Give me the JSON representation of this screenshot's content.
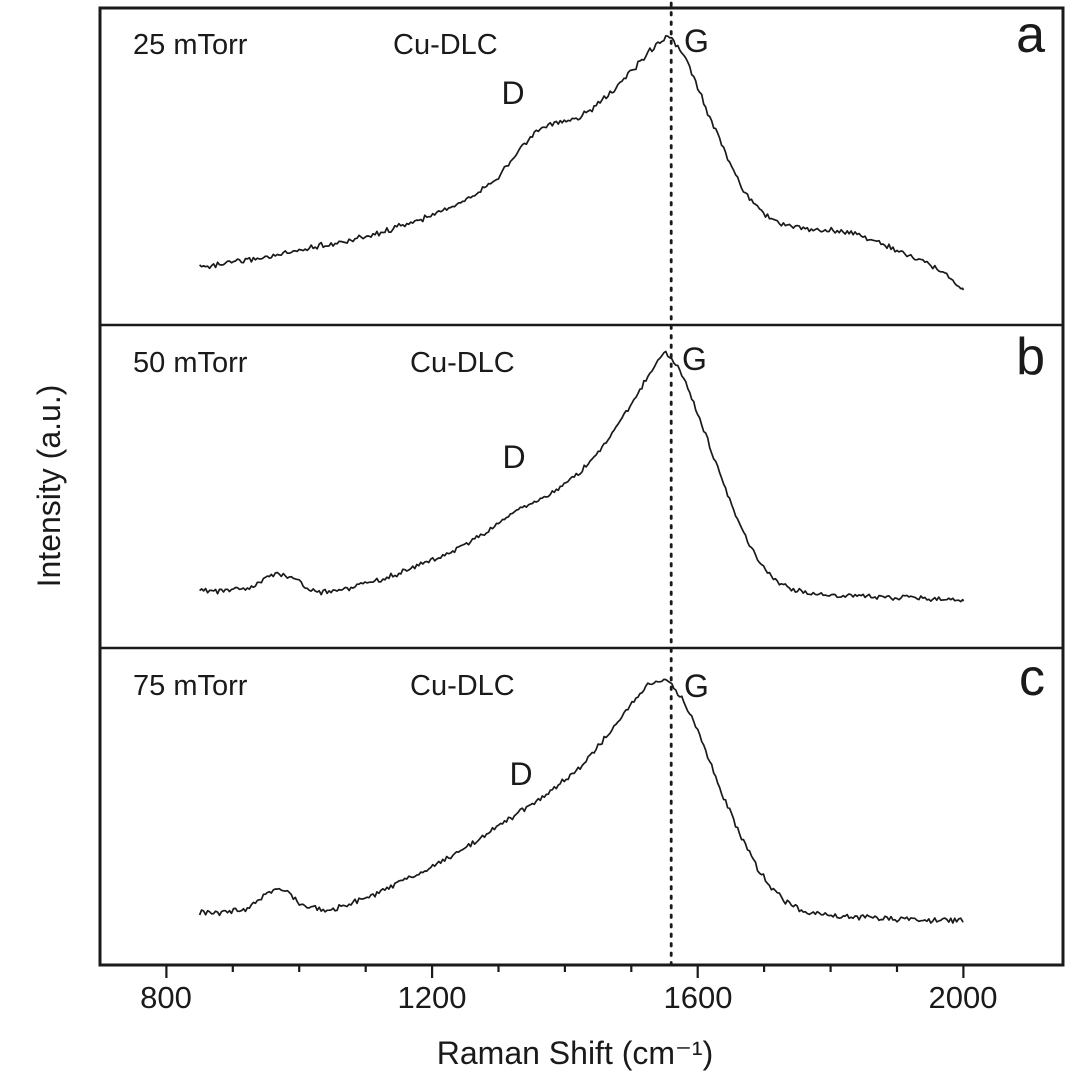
{
  "chart_data": {
    "type": "line",
    "title": "",
    "xlabel": "Raman Shift (cm⁻¹)",
    "ylabel": "Intensity (a.u.)",
    "x_units": "cm⁻¹",
    "y_units": "a.u.",
    "xlim": [
      700,
      2150
    ],
    "xticks": [
      800,
      1200,
      1600,
      2000
    ],
    "xtick_labels": [
      "800",
      "1200",
      "1600",
      "2000"
    ],
    "xtick_minor_start": 800,
    "xtick_minor_end": 2000,
    "xtick_minor_step": 100,
    "grid": "off",
    "legend": "none",
    "dotted_guideline_x": 1560,
    "line_color": "#1a1a1a",
    "background_color": "#ffffff",
    "panels": [
      {
        "letter": "a",
        "pressure_label": "25 mTorr",
        "sample_label": "Cu-DLC",
        "peak_labels": {
          "d": "D",
          "g": "G"
        },
        "d_peak_x_approx": 1360,
        "g_peak_x_approx": 1555,
        "ylim": [
          0,
          1
        ],
        "series": {
          "name": "25 mTorr Cu-DLC",
          "x": [
            850,
            880,
            910,
            940,
            970,
            1000,
            1030,
            1060,
            1090,
            1120,
            1150,
            1180,
            1210,
            1240,
            1270,
            1300,
            1320,
            1340,
            1360,
            1380,
            1400,
            1420,
            1440,
            1460,
            1480,
            1500,
            1515,
            1530,
            1542,
            1552,
            1560,
            1570,
            1585,
            1600,
            1615,
            1630,
            1650,
            1670,
            1690,
            1710,
            1730,
            1755,
            1780,
            1805,
            1830,
            1855,
            1880,
            1905,
            1930,
            1955,
            1980,
            2000
          ],
          "y": [
            0.185,
            0.19,
            0.2,
            0.21,
            0.22,
            0.235,
            0.25,
            0.26,
            0.275,
            0.29,
            0.31,
            0.33,
            0.355,
            0.385,
            0.42,
            0.47,
            0.52,
            0.575,
            0.615,
            0.635,
            0.64,
            0.655,
            0.68,
            0.715,
            0.755,
            0.8,
            0.835,
            0.87,
            0.895,
            0.91,
            0.905,
            0.88,
            0.825,
            0.75,
            0.67,
            0.6,
            0.5,
            0.42,
            0.37,
            0.335,
            0.315,
            0.305,
            0.3,
            0.3,
            0.29,
            0.275,
            0.255,
            0.23,
            0.21,
            0.185,
            0.15,
            0.11
          ]
        }
      },
      {
        "letter": "b",
        "pressure_label": "50 mTorr",
        "sample_label": "Cu-DLC",
        "peak_labels": {
          "d": "D",
          "g": "G"
        },
        "d_peak_x_approx": 1350,
        "g_peak_x_approx": 1552,
        "ylim": [
          0,
          1
        ],
        "series": {
          "name": "50 mTorr Cu-DLC",
          "x": [
            850,
            880,
            910,
            930,
            950,
            965,
            980,
            995,
            1010,
            1030,
            1050,
            1075,
            1100,
            1125,
            1150,
            1175,
            1200,
            1225,
            1250,
            1275,
            1300,
            1325,
            1350,
            1375,
            1400,
            1425,
            1450,
            1475,
            1500,
            1515,
            1530,
            1542,
            1552,
            1562,
            1575,
            1590,
            1605,
            1620,
            1640,
            1660,
            1680,
            1700,
            1720,
            1745,
            1770,
            1800,
            1830,
            1860,
            1890,
            1920,
            1950,
            1975,
            2000
          ],
          "y": [
            0.175,
            0.175,
            0.18,
            0.19,
            0.215,
            0.23,
            0.22,
            0.215,
            0.185,
            0.175,
            0.175,
            0.185,
            0.2,
            0.215,
            0.23,
            0.25,
            0.27,
            0.295,
            0.32,
            0.35,
            0.385,
            0.42,
            0.45,
            0.475,
            0.505,
            0.55,
            0.605,
            0.675,
            0.755,
            0.805,
            0.858,
            0.895,
            0.91,
            0.895,
            0.85,
            0.78,
            0.7,
            0.615,
            0.5,
            0.395,
            0.31,
            0.248,
            0.205,
            0.18,
            0.17,
            0.165,
            0.162,
            0.16,
            0.156,
            0.155,
            0.152,
            0.15,
            0.145
          ]
        }
      },
      {
        "letter": "c",
        "pressure_label": "75 mTorr",
        "sample_label": "Cu-DLC",
        "peak_labels": {
          "d": "D",
          "g": "G"
        },
        "d_peak_x_approx": 1340,
        "g_peak_x_approx": 1540,
        "ylim": [
          0,
          1
        ],
        "series": {
          "name": "75 mTorr Cu-DLC",
          "x": [
            850,
            875,
            900,
            920,
            940,
            955,
            970,
            985,
            1000,
            1015,
            1035,
            1055,
            1080,
            1105,
            1130,
            1155,
            1180,
            1205,
            1230,
            1255,
            1280,
            1305,
            1330,
            1355,
            1380,
            1405,
            1430,
            1455,
            1480,
            1500,
            1515,
            1528,
            1540,
            1550,
            1560,
            1572,
            1585,
            1600,
            1615,
            1632,
            1650,
            1670,
            1690,
            1710,
            1730,
            1755,
            1780,
            1810,
            1840,
            1870,
            1900,
            1930,
            1960,
            2000
          ],
          "y": [
            0.165,
            0.165,
            0.17,
            0.178,
            0.205,
            0.23,
            0.238,
            0.225,
            0.195,
            0.18,
            0.176,
            0.18,
            0.195,
            0.215,
            0.24,
            0.265,
            0.29,
            0.315,
            0.345,
            0.375,
            0.41,
            0.445,
            0.48,
            0.515,
            0.55,
            0.592,
            0.64,
            0.7,
            0.77,
            0.822,
            0.862,
            0.888,
            0.9,
            0.895,
            0.885,
            0.855,
            0.808,
            0.738,
            0.66,
            0.565,
            0.475,
            0.385,
            0.305,
            0.245,
            0.205,
            0.175,
            0.162,
            0.155,
            0.15,
            0.148,
            0.145,
            0.143,
            0.14,
            0.138
          ]
        }
      }
    ]
  }
}
